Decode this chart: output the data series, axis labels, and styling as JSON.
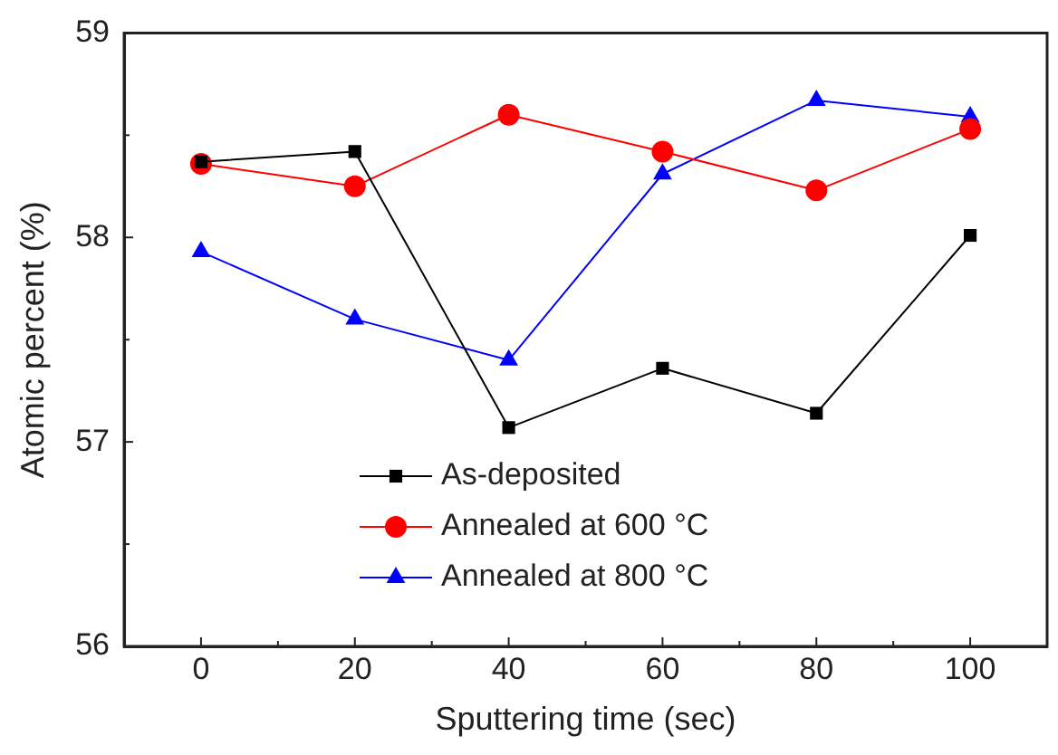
{
  "chart_data": {
    "type": "line",
    "xlabel": "Sputtering time (sec)",
    "ylabel": "Atomic percent (%)",
    "x": [
      0,
      20,
      40,
      60,
      80,
      100
    ],
    "xlim": [
      -10,
      110
    ],
    "xticks": [
      0,
      20,
      40,
      60,
      80,
      100
    ],
    "ylim": [
      56,
      59
    ],
    "yticks": [
      56,
      57,
      58,
      59
    ],
    "grid": false,
    "legend": "bottom left",
    "line_style": "solid",
    "series": [
      {
        "name": "As-deposited",
        "color": "#000000",
        "marker": "square",
        "values": [
          58.37,
          58.42,
          57.07,
          57.36,
          57.14,
          58.01
        ]
      },
      {
        "name": "Annealed at 600 °C",
        "color": "#ff0000",
        "marker": "circle",
        "values": [
          58.36,
          58.25,
          58.6,
          58.42,
          58.23,
          58.53
        ]
      },
      {
        "name": "Annealed at 800 °C",
        "color": "#0000ff",
        "marker": "triangle",
        "values": [
          57.93,
          57.6,
          57.4,
          58.31,
          58.67,
          58.59
        ]
      }
    ]
  }
}
